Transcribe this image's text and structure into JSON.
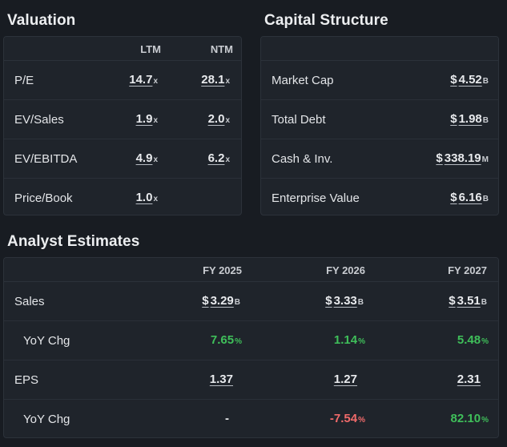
{
  "valuation": {
    "title": "Valuation",
    "columns": [
      "LTM",
      "NTM"
    ],
    "rows": [
      {
        "label": "P/E",
        "ltm": "14.7",
        "ntm": "28.1",
        "suffix": "x"
      },
      {
        "label": "EV/Sales",
        "ltm": "1.9",
        "ntm": "2.0",
        "suffix": "x"
      },
      {
        "label": "EV/EBITDA",
        "ltm": "4.9",
        "ntm": "6.2",
        "suffix": "x"
      },
      {
        "label": "Price/Book",
        "ltm": "1.0",
        "ntm": "",
        "suffix": "x"
      }
    ]
  },
  "capital_structure": {
    "title": "Capital Structure",
    "rows": [
      {
        "label": "Market Cap",
        "currency": "$",
        "value": "4.52",
        "suffix": "B"
      },
      {
        "label": "Total Debt",
        "currency": "$",
        "value": "1.98",
        "suffix": "B"
      },
      {
        "label": "Cash & Inv.",
        "currency": "$",
        "value": "338.19",
        "suffix": "M"
      },
      {
        "label": "Enterprise Value",
        "currency": "$",
        "value": "6.16",
        "suffix": "B"
      }
    ]
  },
  "analyst_estimates": {
    "title": "Analyst Estimates",
    "columns": [
      "FY 2025",
      "FY 2026",
      "FY 2027"
    ],
    "sales": {
      "label": "Sales",
      "currency": "$",
      "values": [
        "3.29",
        "3.33",
        "3.51"
      ],
      "suffix": "B"
    },
    "sales_yoy": {
      "label": "YoY Chg",
      "values": [
        "7.65",
        "1.14",
        "5.48"
      ],
      "suffix": "%"
    },
    "eps": {
      "label": "EPS",
      "values": [
        "1.37",
        "1.27",
        "2.31"
      ]
    },
    "eps_yoy": {
      "label": "YoY Chg",
      "values": [
        "-",
        "-7.54",
        "82.10"
      ],
      "suffix": "%"
    }
  },
  "colors": {
    "positive": "#3fbf5a",
    "negative": "#f06a6a",
    "background": "#181c22",
    "card": "#1f242b"
  }
}
